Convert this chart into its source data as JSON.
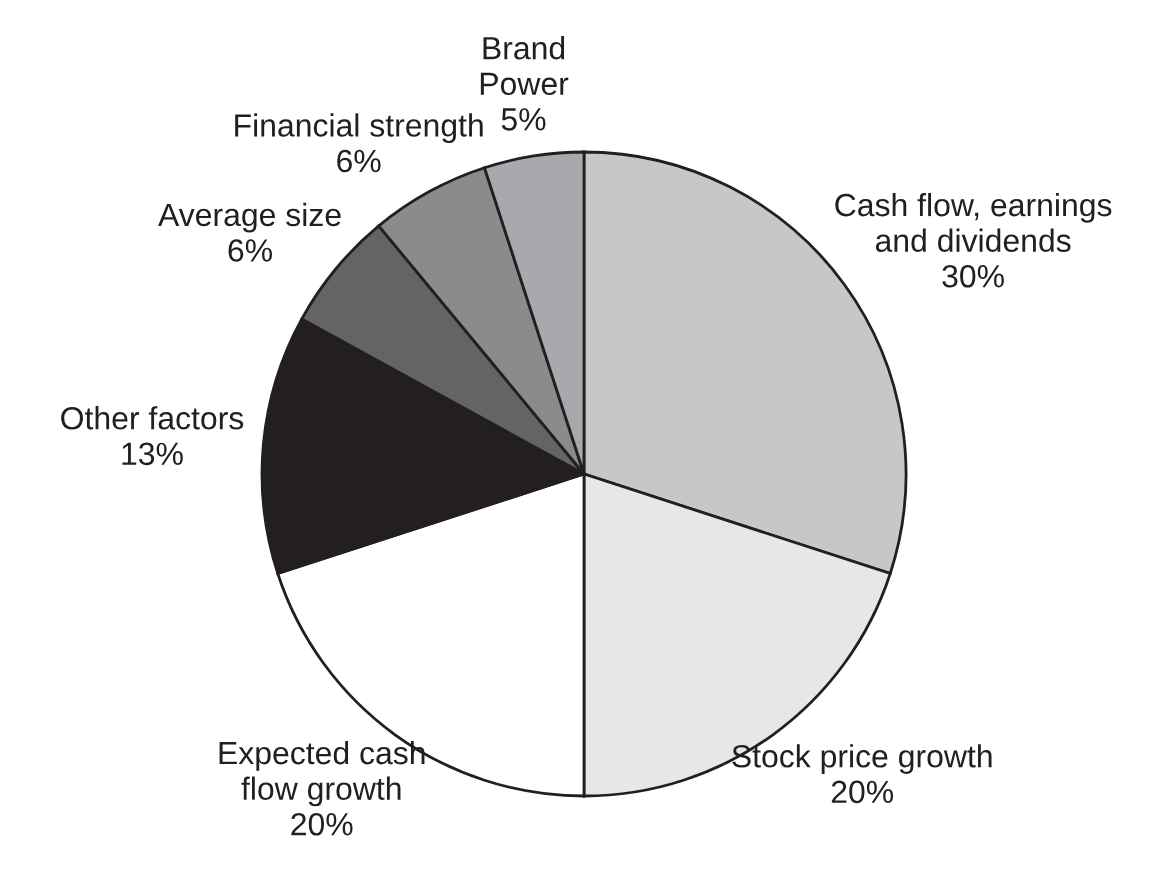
{
  "chart_data": {
    "type": "pie",
    "categories": [
      "Cash flow, earnings\nand dividends",
      "Stock price growth",
      "Expected cash\nflow growth",
      "Other factors",
      "Average size",
      "Financial strength",
      "Brand\nPower"
    ],
    "values": [
      30,
      20,
      20,
      13,
      6,
      6,
      5
    ],
    "value_labels": [
      "30%",
      "20%",
      "20%",
      "13%",
      "6%",
      "6%",
      "5%"
    ],
    "colors": [
      "#c6c7c9",
      "#e6e7e8",
      "#ffffff",
      "#231f20",
      "#636466",
      "#8a8b8d",
      "#a7a9ac"
    ]
  }
}
